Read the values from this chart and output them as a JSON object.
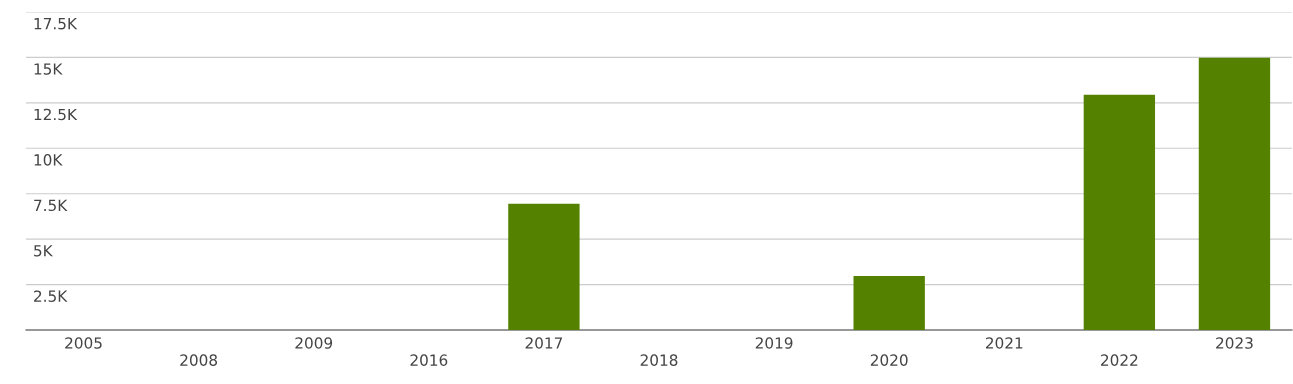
{
  "chart_data": {
    "type": "bar",
    "categories": [
      "2005",
      "2008",
      "2009",
      "2016",
      "2017",
      "2018",
      "2019",
      "2020",
      "2021",
      "2022",
      "2023"
    ],
    "values": [
      0,
      0,
      0,
      0,
      6950,
      0,
      0,
      2970,
      0,
      12950,
      14980
    ],
    "color": "#548200",
    "ylim": [
      0,
      17500
    ],
    "yticks": [
      {
        "value": 2500,
        "label": "2.5K"
      },
      {
        "value": 5000,
        "label": "5K"
      },
      {
        "value": 7500,
        "label": "7.5K"
      },
      {
        "value": 10000,
        "label": "10K"
      },
      {
        "value": 12500,
        "label": "12.5K"
      },
      {
        "value": 15000,
        "label": "15K"
      },
      {
        "value": 17500,
        "label": "17.5K"
      }
    ],
    "grid": "y"
  }
}
